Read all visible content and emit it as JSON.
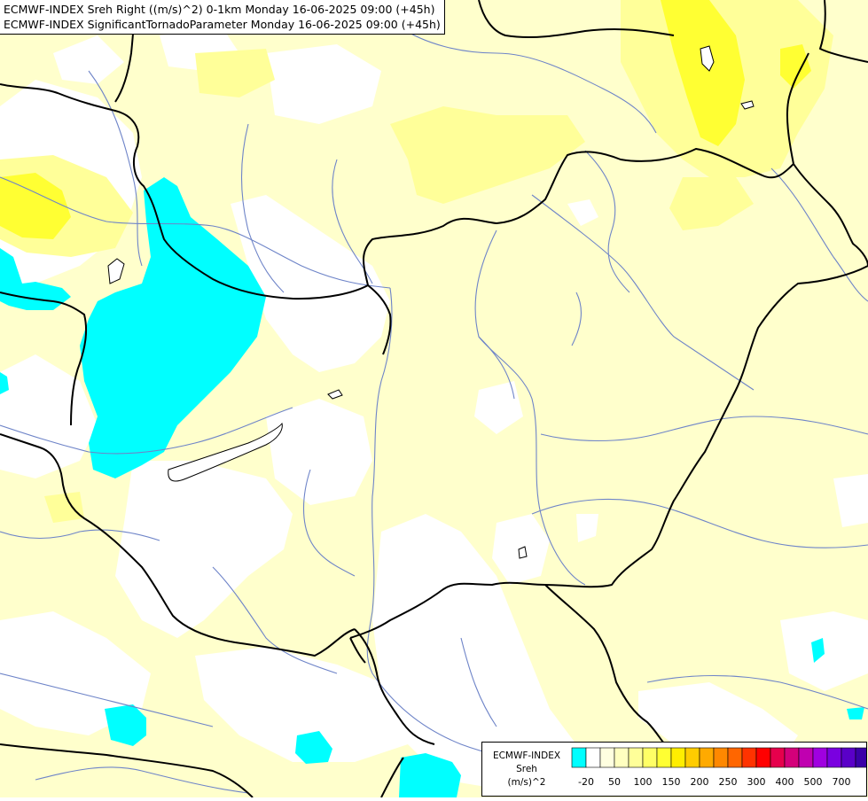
{
  "title": {
    "line1": "ECMWF-INDEX Sreh Right ((m/s)^2) 0-1km Monday 16-06-2025 09:00 (+45h)",
    "line2": "ECMWF-INDEX SignificantTornadoParameter Monday 16-06-2025 09:00 (+45h)"
  },
  "legend": {
    "source": "ECMWF-INDEX",
    "variable": "Sreh",
    "unit": "(m/s)^2",
    "colors": [
      "#00ffff",
      "#ffffff",
      "#ffffe0",
      "#ffffc0",
      "#ffff99",
      "#ffff66",
      "#ffff33",
      "#ffee00",
      "#ffcc00",
      "#ffaa00",
      "#ff8800",
      "#ff6600",
      "#ff3300",
      "#ff0000",
      "#e6004c",
      "#d4007a",
      "#c000b0",
      "#a000e0",
      "#7a00e0",
      "#5a00c8",
      "#3a00a8",
      "#000080"
    ],
    "ticks": [
      "-20",
      "50",
      "100",
      "150",
      "200",
      "250",
      "300",
      "400",
      "500",
      "700"
    ]
  },
  "colors": {
    "pale_yellow": "#ffffcc",
    "yellow_mid": "#ffff99",
    "yellow_strong": "#ffff33",
    "cyan": "#00ffff",
    "border": "#000000",
    "river": "#6e84c8"
  }
}
